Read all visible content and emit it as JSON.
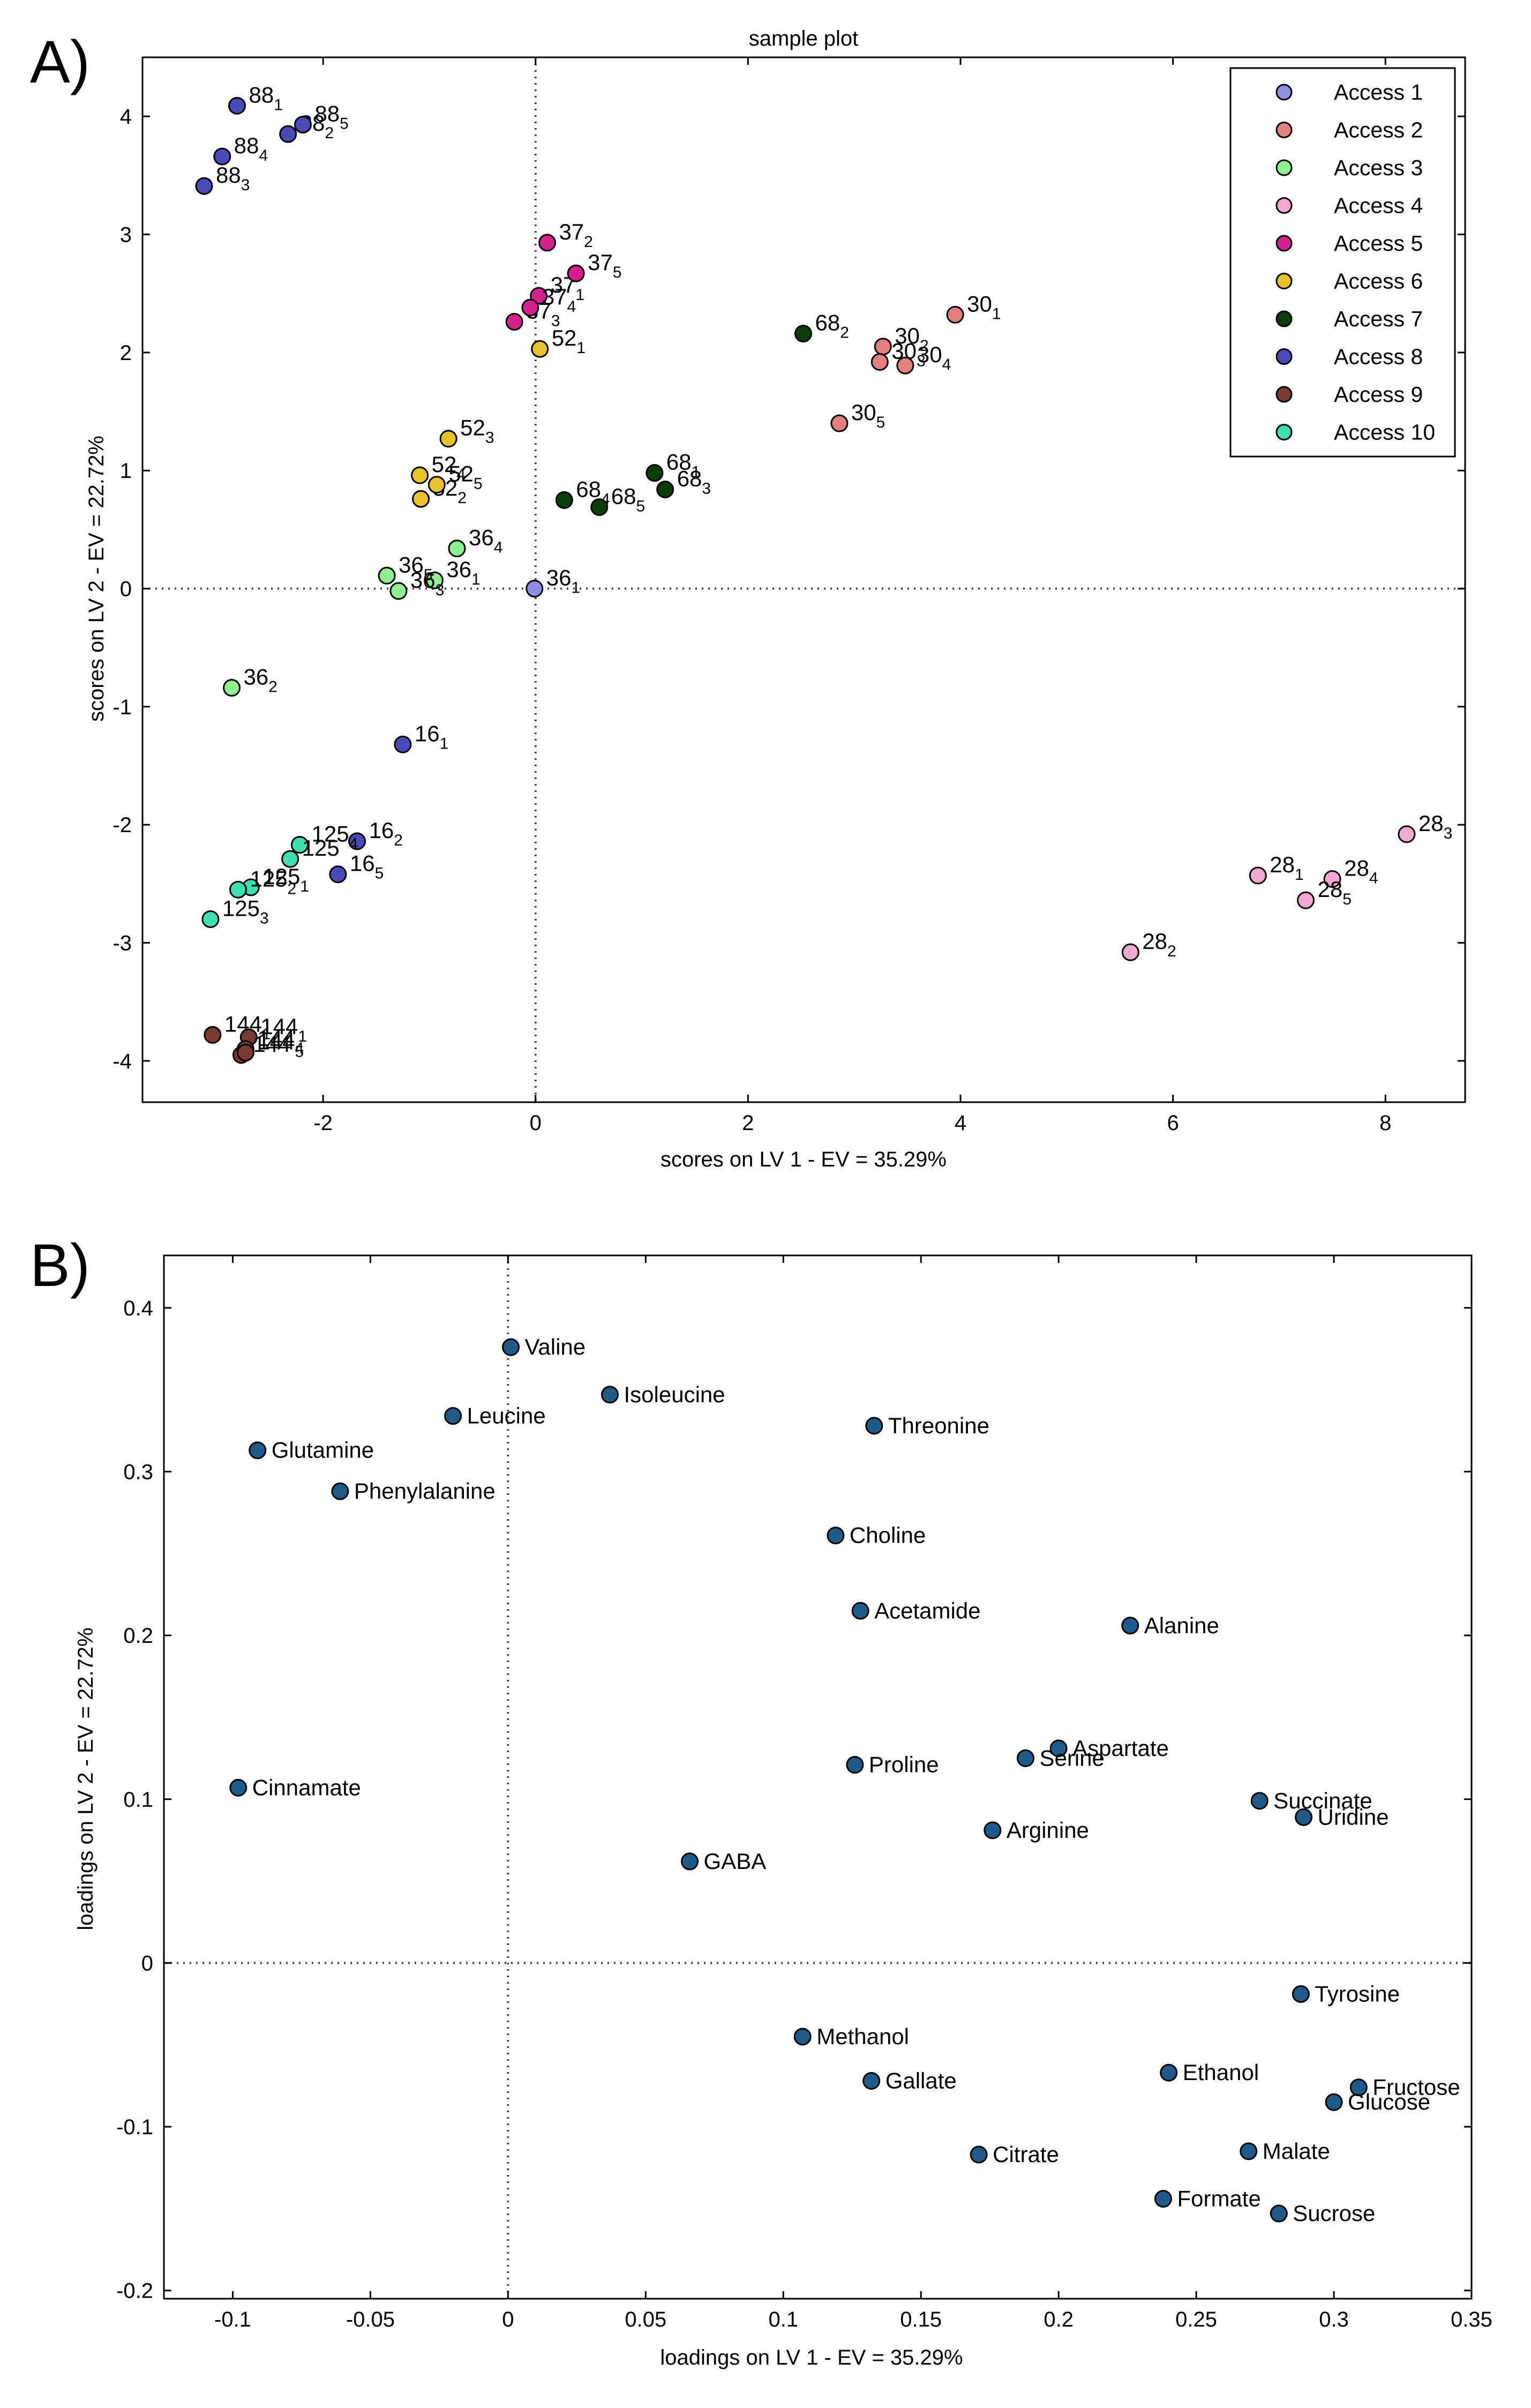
{
  "chart_data": [
    {
      "panel": "A)",
      "type": "scatter",
      "title": "sample plot",
      "xlabel": "scores on LV 1 - EV = 35.29%",
      "ylabel": "scores on LV 2 - EV = 22.72%",
      "xlim": [
        -3.7,
        8.75
      ],
      "ylim": [
        -4.35,
        4.5
      ],
      "xticks": [
        -2,
        0,
        2,
        4,
        6,
        8
      ],
      "yticks": [
        -4,
        -3,
        -2,
        -1,
        0,
        1,
        2,
        3,
        4
      ],
      "grid": false,
      "legend_position": "top-right",
      "series": [
        {
          "name": "Access 1",
          "color": "#8f8fe3",
          "points": [
            {
              "x": -0.01,
              "y": 0.0,
              "lab": "36",
              "sub": "1"
            }
          ]
        },
        {
          "name": "Access 2",
          "color": "#e37f7f",
          "points": [
            {
              "x": 3.95,
              "y": 2.32,
              "lab": "30",
              "sub": "1"
            },
            {
              "x": 3.27,
              "y": 2.05,
              "lab": "30",
              "sub": "2"
            },
            {
              "x": 3.24,
              "y": 1.92,
              "lab": "30",
              "sub": "3"
            },
            {
              "x": 3.48,
              "y": 1.89,
              "lab": "30",
              "sub": "4"
            },
            {
              "x": 2.86,
              "y": 1.4,
              "lab": "30",
              "sub": "5"
            }
          ]
        },
        {
          "name": "Access 3",
          "color": "#8ff08f",
          "points": [
            {
              "x": -0.95,
              "y": 0.07,
              "lab": "36",
              "sub": "1"
            },
            {
              "x": -2.86,
              "y": -0.84,
              "lab": "36",
              "sub": "2"
            },
            {
              "x": -1.29,
              "y": -0.02,
              "lab": "36",
              "sub": "3"
            },
            {
              "x": -0.74,
              "y": 0.34,
              "lab": "36",
              "sub": "4"
            },
            {
              "x": -1.4,
              "y": 0.11,
              "lab": "36",
              "sub": "5"
            }
          ]
        },
        {
          "name": "Access 4",
          "color": "#f2a8d0",
          "points": [
            {
              "x": 6.8,
              "y": -2.43,
              "lab": "28",
              "sub": "1"
            },
            {
              "x": 5.6,
              "y": -3.08,
              "lab": "28",
              "sub": "2"
            },
            {
              "x": 8.2,
              "y": -2.08,
              "lab": "28",
              "sub": "3"
            },
            {
              "x": 7.5,
              "y": -2.46,
              "lab": "28",
              "sub": "4"
            },
            {
              "x": 7.25,
              "y": -2.64,
              "lab": "28",
              "sub": "5"
            }
          ]
        },
        {
          "name": "Access 5",
          "color": "#d6208f",
          "points": [
            {
              "x": 0.03,
              "y": 2.48,
              "lab": "37",
              "sub": "1"
            },
            {
              "x": 0.11,
              "y": 2.93,
              "lab": "37",
              "sub": "2"
            },
            {
              "x": -0.2,
              "y": 2.26,
              "lab": "37",
              "sub": "3"
            },
            {
              "x": -0.05,
              "y": 2.38,
              "lab": "37",
              "sub": "4"
            },
            {
              "x": 0.38,
              "y": 2.67,
              "lab": "37",
              "sub": "5"
            }
          ]
        },
        {
          "name": "Access 6",
          "color": "#e8c22a",
          "points": [
            {
              "x": 0.04,
              "y": 2.03,
              "lab": "52",
              "sub": "1"
            },
            {
              "x": -1.08,
              "y": 0.76,
              "lab": "52",
              "sub": "2"
            },
            {
              "x": -0.82,
              "y": 1.27,
              "lab": "52",
              "sub": "3"
            },
            {
              "x": -1.09,
              "y": 0.96,
              "lab": "52",
              "sub": "4"
            },
            {
              "x": -0.93,
              "y": 0.88,
              "lab": "52",
              "sub": "5"
            }
          ]
        },
        {
          "name": "Access 7",
          "color": "#0b3d0b",
          "points": [
            {
              "x": 1.12,
              "y": 0.98,
              "lab": "68",
              "sub": "1"
            },
            {
              "x": 2.52,
              "y": 2.16,
              "lab": "68",
              "sub": "2"
            },
            {
              "x": 1.22,
              "y": 0.84,
              "lab": "68",
              "sub": "3"
            },
            {
              "x": 0.27,
              "y": 0.75,
              "lab": "68",
              "sub": "4"
            },
            {
              "x": 0.6,
              "y": 0.69,
              "lab": "68",
              "sub": "5"
            }
          ]
        },
        {
          "name": "Access 8",
          "color": "#4a4ab8",
          "points": [
            {
              "x": -2.81,
              "y": 4.09,
              "lab": "88",
              "sub": "1"
            },
            {
              "x": -2.33,
              "y": 3.85,
              "lab": "88",
              "sub": "2"
            },
            {
              "x": -3.12,
              "y": 3.41,
              "lab": "88",
              "sub": "3"
            },
            {
              "x": -2.95,
              "y": 3.66,
              "lab": "88",
              "sub": "4"
            },
            {
              "x": -2.19,
              "y": 3.93,
              "lab": "88",
              "sub": "5"
            },
            {
              "x": -1.25,
              "y": -1.32,
              "lab": "16",
              "sub": "1"
            },
            {
              "x": -1.68,
              "y": -2.14,
              "lab": "16",
              "sub": "2"
            },
            {
              "x": -1.86,
              "y": -2.42,
              "lab": "16",
              "sub": "5"
            }
          ]
        },
        {
          "name": "Access 9",
          "color": "#7a3a33",
          "points": [
            {
              "x": -3.04,
              "y": -3.78,
              "lab": "144",
              "sub": "1"
            },
            {
              "x": -2.7,
              "y": -3.8,
              "lab": "144",
              "sub": "1"
            },
            {
              "x": -2.73,
              "y": -3.9,
              "lab": "144",
              "sub": "4"
            },
            {
              "x": -2.77,
              "y": -3.95,
              "lab": "144",
              "sub": ""
            },
            {
              "x": -2.73,
              "y": -3.93,
              "lab": "144",
              "sub": "5"
            }
          ]
        },
        {
          "name": "Access 10",
          "color": "#3fe0b0",
          "points": [
            {
              "x": -2.68,
              "y": -2.53,
              "lab": "125",
              "sub": "1"
            },
            {
              "x": -2.8,
              "y": -2.55,
              "lab": "125",
              "sub": "2"
            },
            {
              "x": -3.06,
              "y": -2.8,
              "lab": "125",
              "sub": "3"
            },
            {
              "x": -2.22,
              "y": -2.17,
              "lab": "125",
              "sub": "4"
            },
            {
              "x": -2.31,
              "y": -2.29,
              "lab": "125",
              "sub": ""
            }
          ]
        }
      ]
    },
    {
      "panel": "B)",
      "type": "scatter",
      "title": "",
      "xlabel": "loadings on LV 1 - EV = 35.29%",
      "ylabel": "loadings on LV 2 - EV = 22.72%",
      "xlim": [
        -0.125,
        0.35
      ],
      "ylim": [
        -0.205,
        0.432
      ],
      "xticks": [
        -0.1,
        -0.05,
        0,
        0.05,
        0.1,
        0.15,
        0.2,
        0.25,
        0.3,
        0.35
      ],
      "xtick_labels": [
        "-0.1",
        "-0.05",
        "0",
        "0.05",
        "0.1",
        "0.15",
        "0.2",
        "0.25",
        "0.3",
        "0.35"
      ],
      "yticks": [
        -0.2,
        -0.1,
        0,
        0.1,
        0.2,
        0.3,
        0.4
      ],
      "ytick_labels": [
        "-0.2",
        "-0.1",
        "0",
        "0.1",
        "0.2",
        "0.3",
        "0.4"
      ],
      "grid": false,
      "marker_color": "#1f5b8a",
      "points": [
        {
          "label": "Valine",
          "x": 0.001,
          "y": 0.376
        },
        {
          "label": "Isoleucine",
          "x": 0.037,
          "y": 0.347
        },
        {
          "label": "Leucine",
          "x": -0.02,
          "y": 0.334
        },
        {
          "label": "Threonine",
          "x": 0.133,
          "y": 0.328
        },
        {
          "label": "Glutamine",
          "x": -0.091,
          "y": 0.313
        },
        {
          "label": "Phenylalanine",
          "x": -0.061,
          "y": 0.288
        },
        {
          "label": "Choline",
          "x": 0.119,
          "y": 0.261
        },
        {
          "label": "Acetamide",
          "x": 0.128,
          "y": 0.215
        },
        {
          "label": "Alanine",
          "x": 0.226,
          "y": 0.206
        },
        {
          "label": "Aspartate",
          "x": 0.2,
          "y": 0.131
        },
        {
          "label": "Serine",
          "x": 0.188,
          "y": 0.125
        },
        {
          "label": "Proline",
          "x": 0.126,
          "y": 0.121
        },
        {
          "label": "Cinnamate",
          "x": -0.098,
          "y": 0.107
        },
        {
          "label": "Succinate",
          "x": 0.273,
          "y": 0.099
        },
        {
          "label": "Uridine",
          "x": 0.289,
          "y": 0.089
        },
        {
          "label": "Arginine",
          "x": 0.176,
          "y": 0.081
        },
        {
          "label": "GABA",
          "x": 0.066,
          "y": 0.062
        },
        {
          "label": "Tyrosine",
          "x": 0.288,
          "y": -0.019
        },
        {
          "label": "Methanol",
          "x": 0.107,
          "y": -0.045
        },
        {
          "label": "Ethanol",
          "x": 0.24,
          "y": -0.067
        },
        {
          "label": "Gallate",
          "x": 0.132,
          "y": -0.072
        },
        {
          "label": "Fructose",
          "x": 0.309,
          "y": -0.076
        },
        {
          "label": "Glucose",
          "x": 0.3,
          "y": -0.085
        },
        {
          "label": "Malate",
          "x": 0.269,
          "y": -0.115
        },
        {
          "label": "Citrate",
          "x": 0.171,
          "y": -0.117
        },
        {
          "label": "Formate",
          "x": 0.238,
          "y": -0.144
        },
        {
          "label": "Sucrose",
          "x": 0.28,
          "y": -0.153
        }
      ]
    }
  ]
}
